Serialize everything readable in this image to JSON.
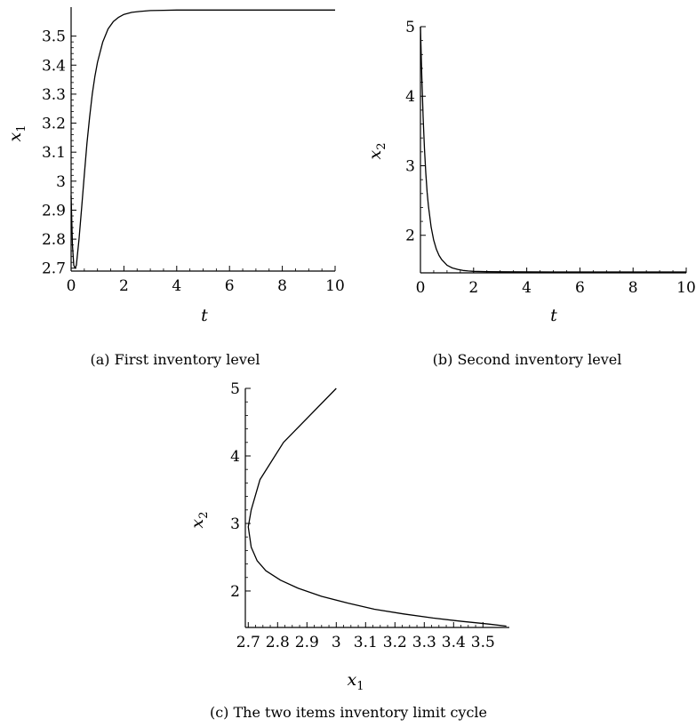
{
  "chart_data": [
    {
      "type": "line",
      "caption": "(a)  First inventory level",
      "xlabel": "t",
      "ylabel": "x",
      "ylabel_sub": "1",
      "xlim": [
        0,
        10
      ],
      "ylim": [
        2.69,
        3.6
      ],
      "xticks": [
        0,
        2,
        4,
        6,
        8,
        10
      ],
      "xtick_labels": [
        "0",
        "2",
        "4",
        "6",
        "8",
        "10"
      ],
      "yticks": [
        2.7,
        2.8,
        2.9,
        3.0,
        3.1,
        3.2,
        3.3,
        3.4,
        3.5
      ],
      "ytick_labels": [
        "2.7",
        "2.8",
        "2.9",
        "3",
        "3.1",
        "3.2",
        "3.3",
        "3.4",
        "3.5"
      ],
      "grid": false,
      "series": [
        {
          "x": [
            0,
            0.05,
            0.1,
            0.15,
            0.2,
            0.3,
            0.4,
            0.5,
            0.6,
            0.7,
            0.8,
            0.9,
            1.0,
            1.2,
            1.4,
            1.6,
            1.8,
            2.0,
            2.3,
            2.6,
            3.0,
            3.5,
            4.0,
            5.0,
            6.0,
            7.0,
            8.0,
            9.0,
            10.0
          ],
          "y": [
            2.95,
            2.78,
            2.71,
            2.7,
            2.71,
            2.8,
            2.91,
            3.02,
            3.13,
            3.22,
            3.3,
            3.36,
            3.41,
            3.48,
            3.525,
            3.55,
            3.565,
            3.575,
            3.582,
            3.585,
            3.588,
            3.589,
            3.59,
            3.59,
            3.59,
            3.59,
            3.59,
            3.59,
            3.59
          ]
        }
      ]
    },
    {
      "type": "line",
      "caption": "(b)  Second inventory level",
      "xlabel": "t",
      "ylabel": "x",
      "ylabel_sub": "2",
      "xlim": [
        0,
        10
      ],
      "ylim": [
        1.46,
        5.0
      ],
      "xticks": [
        0,
        2,
        4,
        6,
        8,
        10
      ],
      "xtick_labels": [
        "0",
        "2",
        "4",
        "6",
        "8",
        "10"
      ],
      "yticks": [
        2,
        3,
        4,
        5
      ],
      "ytick_labels": [
        "2",
        "3",
        "4",
        "5"
      ],
      "grid": false,
      "series": [
        {
          "x": [
            0,
            0.05,
            0.1,
            0.15,
            0.2,
            0.25,
            0.3,
            0.4,
            0.5,
            0.6,
            0.7,
            0.8,
            1.0,
            1.2,
            1.4,
            1.6,
            1.8,
            2.0,
            2.5,
            3.0,
            4.0,
            5.0,
            6.0,
            8.0,
            10.0
          ],
          "y": [
            5.0,
            4.3,
            3.7,
            3.25,
            2.9,
            2.62,
            2.42,
            2.12,
            1.93,
            1.8,
            1.71,
            1.65,
            1.57,
            1.53,
            1.51,
            1.495,
            1.487,
            1.482,
            1.477,
            1.475,
            1.474,
            1.473,
            1.473,
            1.473,
            1.473
          ]
        }
      ]
    },
    {
      "type": "line",
      "caption": "(c)  The two items inventory limit cycle",
      "xlabel": "x",
      "xlabel_sub": "1",
      "ylabel": "x",
      "ylabel_sub": "2",
      "xlim": [
        2.69,
        3.59
      ],
      "ylim": [
        1.46,
        5.0
      ],
      "xticks": [
        2.7,
        2.8,
        2.9,
        3.0,
        3.1,
        3.2,
        3.3,
        3.4,
        3.5
      ],
      "xtick_labels": [
        "2.7",
        "2.8",
        "2.9",
        "3",
        "3.1",
        "3.2",
        "3.3",
        "3.4",
        "3.5"
      ],
      "yticks": [
        2,
        3,
        4,
        5
      ],
      "ytick_labels": [
        "2",
        "3",
        "4",
        "5"
      ],
      "grid": false,
      "series": [
        {
          "x": [
            3.0,
            2.82,
            2.74,
            2.71,
            2.7,
            2.71,
            2.73,
            2.76,
            2.81,
            2.87,
            2.95,
            3.04,
            3.13,
            3.23,
            3.33,
            3.43,
            3.52,
            3.58
          ],
          "y": [
            5.0,
            4.2,
            3.65,
            3.2,
            2.95,
            2.65,
            2.45,
            2.3,
            2.16,
            2.04,
            1.92,
            1.82,
            1.73,
            1.66,
            1.6,
            1.55,
            1.51,
            1.48
          ]
        }
      ]
    }
  ]
}
